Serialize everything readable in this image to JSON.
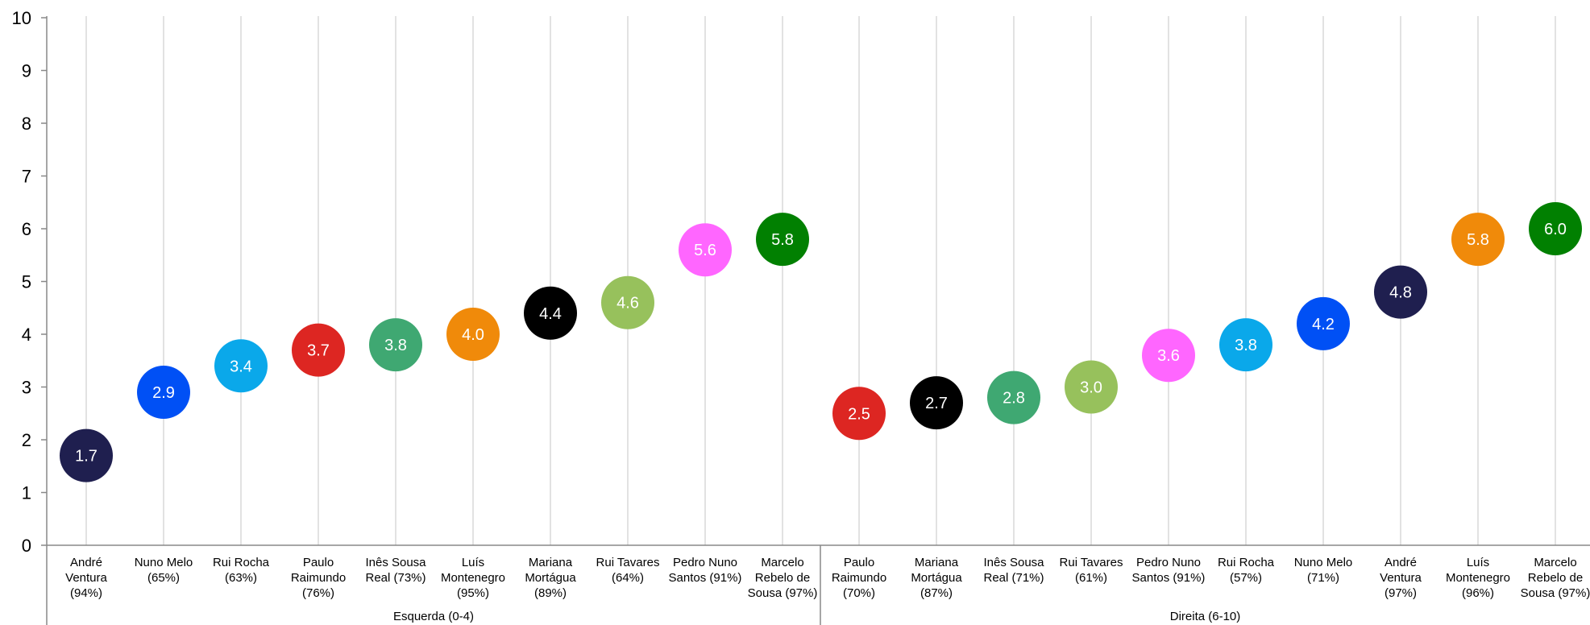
{
  "chart_data": {
    "type": "scatter",
    "title": "",
    "xlabel": "",
    "ylabel": "",
    "ylim": [
      0,
      10
    ],
    "yticks": [
      "0",
      "1",
      "2",
      "3",
      "4",
      "5",
      "6",
      "7",
      "8",
      "9",
      "10"
    ],
    "grid": "vertical lines at each category",
    "legend": "none",
    "groups": [
      {
        "label": "Esquerda (0-4)",
        "points": [
          {
            "category": [
              "André",
              "Ventura",
              "(94%)"
            ],
            "value": 1.7,
            "label": "1.7",
            "color": "#1f1f4f"
          },
          {
            "category": [
              "Nuno Melo",
              "(65%)"
            ],
            "value": 2.9,
            "label": "2.9",
            "color": "#0050f5"
          },
          {
            "category": [
              "Rui Rocha",
              "(63%)"
            ],
            "value": 3.4,
            "label": "3.4",
            "color": "#0aa8ea"
          },
          {
            "category": [
              "Paulo",
              "Raimundo",
              "(76%)"
            ],
            "value": 3.7,
            "label": "3.7",
            "color": "#dd2622"
          },
          {
            "category": [
              "Inês Sousa",
              "Real (73%)"
            ],
            "value": 3.8,
            "label": "3.8",
            "color": "#3fa872"
          },
          {
            "category": [
              "Luís",
              "Montenegro",
              "(95%)"
            ],
            "value": 4.0,
            "label": "4.0",
            "color": "#f08a0a"
          },
          {
            "category": [
              "Mariana",
              "Mortágua",
              "(89%)"
            ],
            "value": 4.4,
            "label": "4.4",
            "color": "#000000"
          },
          {
            "category": [
              "Rui Tavares",
              "(64%)"
            ],
            "value": 4.6,
            "label": "4.6",
            "color": "#97c15c"
          },
          {
            "category": [
              "Pedro Nuno",
              "Santos (91%)"
            ],
            "value": 5.6,
            "label": "5.6",
            "color": "#ff66ff"
          },
          {
            "category": [
              "Marcelo",
              "Rebelo de",
              "Sousa (97%)"
            ],
            "value": 5.8,
            "label": "5.8",
            "color": "#018001"
          }
        ]
      },
      {
        "label": "Direita (6-10)",
        "points": [
          {
            "category": [
              "Paulo",
              "Raimundo",
              "(70%)"
            ],
            "value": 2.5,
            "label": "2.5",
            "color": "#dd2622"
          },
          {
            "category": [
              "Mariana",
              "Mortágua",
              "(87%)"
            ],
            "value": 2.7,
            "label": "2.7",
            "color": "#000000"
          },
          {
            "category": [
              "Inês Sousa",
              "Real (71%)"
            ],
            "value": 2.8,
            "label": "2.8",
            "color": "#3fa872"
          },
          {
            "category": [
              "Rui Tavares",
              "(61%)"
            ],
            "value": 3.0,
            "label": "3.0",
            "color": "#97c15c"
          },
          {
            "category": [
              "Pedro Nuno",
              "Santos (91%)"
            ],
            "value": 3.6,
            "label": "3.6",
            "color": "#ff66ff"
          },
          {
            "category": [
              "Rui Rocha",
              "(57%)"
            ],
            "value": 3.8,
            "label": "3.8",
            "color": "#0aa8ea"
          },
          {
            "category": [
              "Nuno Melo",
              "(71%)"
            ],
            "value": 4.2,
            "label": "4.2",
            "color": "#0050f5"
          },
          {
            "category": [
              "André",
              "Ventura",
              "(97%)"
            ],
            "value": 4.8,
            "label": "4.8",
            "color": "#1f1f4f"
          },
          {
            "category": [
              "Luís",
              "Montenegro",
              "(96%)"
            ],
            "value": 5.8,
            "label": "5.8",
            "color": "#f08a0a"
          },
          {
            "category": [
              "Marcelo",
              "Rebelo de",
              "Sousa (97%)"
            ],
            "value": 6.0,
            "label": "6.0",
            "color": "#018001"
          }
        ]
      }
    ]
  }
}
